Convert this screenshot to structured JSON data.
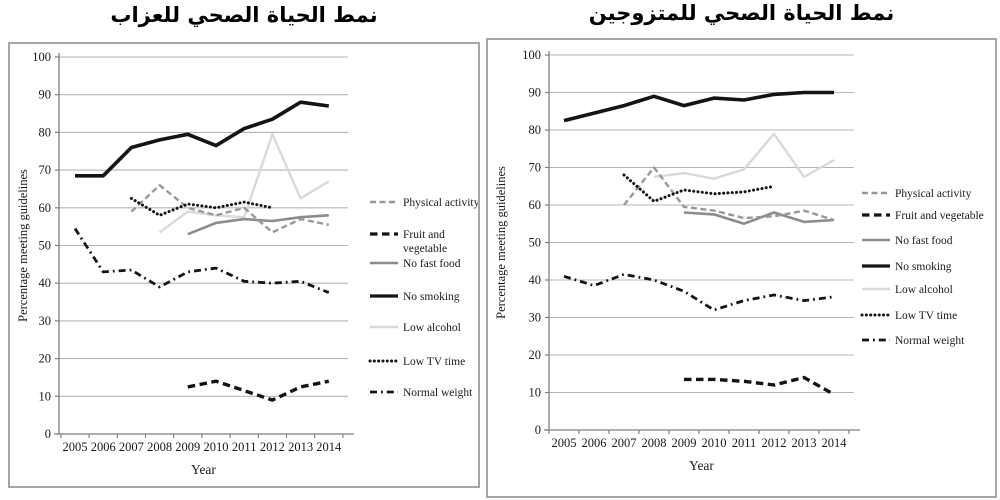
{
  "chart_data": [
    {
      "id": "singles",
      "type": "line",
      "title": "نمط الحياة الصحي للعزاب",
      "xlabel": "Year",
      "ylabel": "Percentage meeting guidelines",
      "ylim": [
        0,
        100
      ],
      "yticks": [
        0,
        10,
        20,
        30,
        40,
        50,
        60,
        70,
        80,
        90,
        100
      ],
      "categories": [
        "2005",
        "2006",
        "2007",
        "2008",
        "2009",
        "2010",
        "2011",
        "2012",
        "2013",
        "2014"
      ],
      "grid": true,
      "legend_position": "right",
      "series": [
        {
          "key": "physical-activity",
          "name": "Physical activity",
          "legend_lines": [
            "Physical activity"
          ],
          "color": "#989898",
          "pattern": "dashed",
          "width": 2.4,
          "values": [
            null,
            null,
            59,
            66,
            60,
            58,
            60,
            53.5,
            57,
            55.5
          ]
        },
        {
          "key": "fruit-and-vegetable",
          "name": "Fruit and vegetable",
          "legend_lines": [
            "Fruit and",
            "vegetable"
          ],
          "color": "#141414",
          "pattern": "dashed",
          "width": 3.4,
          "values": [
            null,
            null,
            null,
            null,
            12.5,
            14,
            11.5,
            9,
            12.5,
            14
          ]
        },
        {
          "key": "no-fast-food",
          "name": "No fast food",
          "legend_lines": [
            "No fast food"
          ],
          "color": "#8c8c8c",
          "pattern": "solid",
          "width": 2.6,
          "values": [
            null,
            null,
            null,
            null,
            53,
            56,
            57,
            56.5,
            57.5,
            58
          ]
        },
        {
          "key": "no-smoking",
          "name": "No smoking",
          "legend_lines": [
            "No smoking"
          ],
          "color": "#141414",
          "pattern": "solid",
          "width": 3.6,
          "values": [
            68.5,
            68.5,
            76,
            78,
            79.5,
            76.5,
            81,
            83.5,
            88,
            87
          ]
        },
        {
          "key": "low-alcohol",
          "name": "Low alcohol",
          "legend_lines": [
            "Low alcohol"
          ],
          "color": "#d9d9d9",
          "pattern": "solid",
          "width": 2.4,
          "values": [
            null,
            null,
            null,
            53.5,
            59,
            58,
            57.5,
            79.5,
            62.5,
            67
          ]
        },
        {
          "key": "low-tv-time",
          "name": "Low TV time",
          "legend_lines": [
            "Low TV time"
          ],
          "color": "#141414",
          "pattern": "dotted",
          "width": 3,
          "values": [
            null,
            null,
            62.5,
            58,
            61,
            60,
            61.5,
            60,
            null,
            null
          ]
        },
        {
          "key": "normal-weight",
          "name": "Normal weight",
          "legend_lines": [
            "Normal weight"
          ],
          "color": "#141414",
          "pattern": "dash-dot",
          "width": 2.8,
          "values": [
            54.5,
            43,
            43.5,
            39,
            43,
            44,
            40.5,
            40,
            40.5,
            37.5
          ]
        }
      ]
    },
    {
      "id": "married",
      "type": "line",
      "title": "نمط الحياة الصحي للمتزوجين",
      "xlabel": "Year",
      "ylabel": "Percentage meeting guidelines",
      "ylim": [
        0,
        100
      ],
      "yticks": [
        0,
        10,
        20,
        30,
        40,
        50,
        60,
        70,
        80,
        90,
        100
      ],
      "categories": [
        "2005",
        "2006",
        "2007",
        "2008",
        "2009",
        "2010",
        "2011",
        "2012",
        "2013",
        "2014"
      ],
      "grid": true,
      "legend_position": "right",
      "series": [
        {
          "key": "physical-activity",
          "name": "Physical activity",
          "legend_lines": [
            "Physical activity"
          ],
          "color": "#989898",
          "pattern": "dashed",
          "width": 2.4,
          "values": [
            null,
            null,
            60,
            70,
            59.5,
            58.5,
            56.5,
            57,
            58.5,
            56
          ]
        },
        {
          "key": "fruit-and-vegetable",
          "name": "Fruit and vegetable",
          "legend_lines": [
            "Fruit and vegetable"
          ],
          "color": "#141414",
          "pattern": "dashed",
          "width": 3.4,
          "values": [
            null,
            null,
            null,
            null,
            13.5,
            13.5,
            13,
            12,
            14,
            9.5
          ]
        },
        {
          "key": "no-fast-food",
          "name": "No fast food",
          "legend_lines": [
            "No fast food"
          ],
          "color": "#8c8c8c",
          "pattern": "solid",
          "width": 2.6,
          "values": [
            null,
            null,
            null,
            null,
            58,
            57.5,
            55,
            58,
            55.5,
            56
          ]
        },
        {
          "key": "no-smoking",
          "name": "No smoking",
          "legend_lines": [
            "No smoking"
          ],
          "color": "#141414",
          "pattern": "solid",
          "width": 3.6,
          "values": [
            82.5,
            84.5,
            86.5,
            89,
            86.5,
            88.5,
            88,
            89.5,
            90,
            90
          ]
        },
        {
          "key": "low-alcohol",
          "name": "Low alcohol",
          "legend_lines": [
            "Low alcohol"
          ],
          "color": "#d9d9d9",
          "pattern": "solid",
          "width": 2.4,
          "values": [
            null,
            null,
            null,
            67.5,
            68.5,
            67,
            69.5,
            79,
            67.5,
            72
          ]
        },
        {
          "key": "low-tv-time",
          "name": "Low TV time",
          "legend_lines": [
            "Low TV time"
          ],
          "color": "#141414",
          "pattern": "dotted",
          "width": 3,
          "values": [
            null,
            null,
            68,
            61,
            64,
            63,
            63.5,
            65,
            null,
            null
          ]
        },
        {
          "key": "normal-weight",
          "name": "Normal weight",
          "legend_lines": [
            "Normal weight"
          ],
          "color": "#141414",
          "pattern": "dash-dot",
          "width": 2.8,
          "values": [
            41,
            38.5,
            41.5,
            40,
            37,
            32,
            34.5,
            36,
            34.5,
            35.5
          ]
        }
      ]
    }
  ],
  "colors": {
    "black_series": "#141414",
    "mid_gray_series": "#989898",
    "fast_food_gray": "#8c8c8c",
    "light_gray_series": "#d9d9d9",
    "gridline": "#b5b5b5",
    "axis": "#7f7f7f",
    "panel_border": "#a6a6a6",
    "text": "#1a1a1a"
  }
}
